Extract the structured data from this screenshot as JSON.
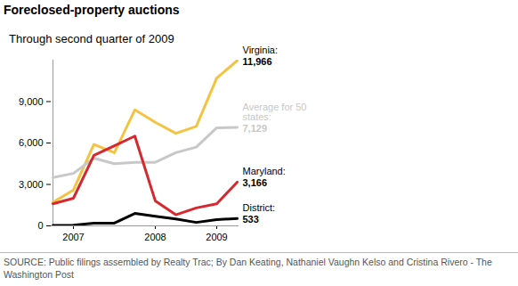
{
  "chart_data": {
    "type": "line",
    "title": "Foreclosed-property auctions",
    "subtitle": "Through second quarter of 2009",
    "caption": "SOURCE: Public filings assembled by Realty Trac; By Dan Keating, Nathaniel Vaughn Kelso and Cristina Rivero - The Washington Post",
    "categories": [
      null,
      "2007",
      null,
      null,
      null,
      "2008",
      null,
      null,
      "2009",
      null
    ],
    "series": [
      {
        "name": "Virginia:",
        "color": "#f5c342",
        "values": [
          1700,
          2600,
          5900,
          5300,
          8400,
          7500,
          6700,
          7200,
          10700,
          11966
        ],
        "value_labels": [
          null,
          null,
          null,
          null,
          null,
          null,
          null,
          null,
          null,
          "11,966"
        ]
      },
      {
        "name": "Average for 50 states:",
        "color": "#c8c8c8",
        "values": [
          3500,
          3800,
          4900,
          4500,
          4600,
          4600,
          5300,
          5700,
          7100,
          7129
        ],
        "value_labels": [
          null,
          null,
          null,
          null,
          null,
          null,
          null,
          null,
          null,
          "7,129"
        ]
      },
      {
        "name": "Maryland:",
        "color": "#d6282e",
        "values": [
          1600,
          2000,
          5100,
          5800,
          6500,
          1800,
          800,
          1300,
          1600,
          3166
        ],
        "value_labels": [
          null,
          null,
          null,
          null,
          null,
          null,
          null,
          null,
          null,
          "3,166"
        ]
      },
      {
        "name": "District:",
        "color": "#000000",
        "values": [
          30,
          50,
          200,
          200,
          900,
          700,
          500,
          250,
          450,
          533
        ],
        "value_labels": [
          null,
          null,
          null,
          null,
          null,
          null,
          null,
          null,
          null,
          "533"
        ]
      }
    ],
    "ylim": [
      0,
      12000
    ],
    "yticks": [
      0,
      {
        "value": 3000,
        "label": "3,000"
      },
      {
        "value": 6000,
        "label": "6,000"
      },
      {
        "value": 9000,
        "label": "9,000"
      }
    ],
    "grid": false,
    "data_labels": true
  }
}
